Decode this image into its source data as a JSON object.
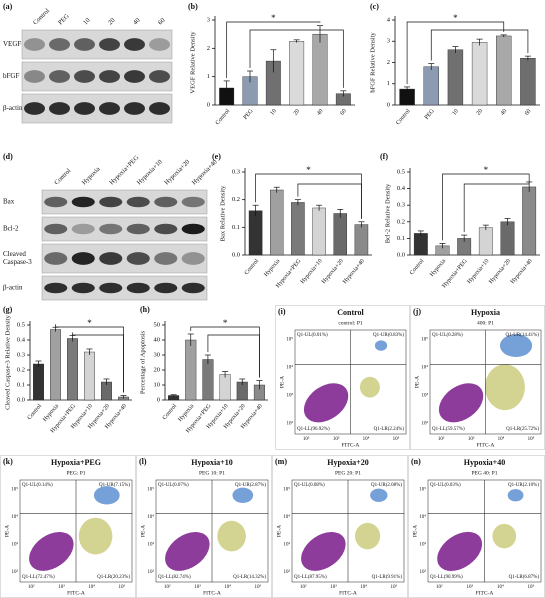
{
  "chart_data": [
    {
      "type": "bar",
      "panel": "(b)",
      "ylabel": "VEGF Relative Density",
      "categories": [
        "Control",
        "PEG",
        "10",
        "20",
        "40",
        "60"
      ],
      "values": [
        0.6,
        1.0,
        1.55,
        2.25,
        2.5,
        0.4
      ],
      "errors": [
        0.25,
        0.2,
        0.4,
        0.05,
        0.3,
        0.1
      ],
      "colors": [
        "#111111",
        "#8c9bb0",
        "#707070",
        "#dadada",
        "#a8a8a8",
        "#6e6e6e"
      ],
      "ylim": [
        0,
        3
      ],
      "yticks": [
        0,
        1,
        2,
        3
      ],
      "annotation": "*"
    },
    {
      "type": "bar",
      "panel": "(c)",
      "ylabel": "bFGF Relative Density",
      "categories": [
        "Control",
        "PEG",
        "10",
        "20",
        "40",
        "60"
      ],
      "values": [
        0.75,
        1.8,
        2.6,
        2.95,
        3.25,
        2.2
      ],
      "errors": [
        0.1,
        0.15,
        0.15,
        0.15,
        0.05,
        0.1
      ],
      "colors": [
        "#111111",
        "#8c9bb0",
        "#707070",
        "#dadada",
        "#a8a8a8",
        "#6e6e6e"
      ],
      "ylim": [
        0,
        4
      ],
      "yticks": [
        0,
        1,
        2,
        3,
        4
      ],
      "annotation": "*"
    },
    {
      "type": "bar",
      "panel": "(e)",
      "ylabel": "Bax Relative Density",
      "categories": [
        "Control",
        "Hypoxia",
        "Hypoxia+PEG",
        "Hypoxia+10",
        "Hypoxia+20",
        "Hypoxia+40"
      ],
      "values": [
        0.16,
        0.235,
        0.19,
        0.17,
        0.15,
        0.11
      ],
      "errors": [
        0.02,
        0.01,
        0.01,
        0.01,
        0.015,
        0.01
      ],
      "colors": [
        "#333333",
        "#a0a0a0",
        "#7a7a7a",
        "#d4d4d4",
        "#6a6a6a",
        "#8a8a8a"
      ],
      "ylim": [
        0,
        0.3
      ],
      "yticks": [
        {
          "value": 0,
          "label": "0.0"
        },
        0.1,
        0.2,
        0.3
      ],
      "annotation": "*"
    },
    {
      "type": "bar",
      "panel": "(f)",
      "ylabel": "Bcl-2 Relative Density",
      "categories": [
        "Control",
        "Hypoxia",
        "Hypoxia+PEG",
        "Hypoxia+10",
        "Hypoxia+20",
        "Hypoxia+40"
      ],
      "values": [
        0.13,
        0.055,
        0.1,
        0.165,
        0.2,
        0.41
      ],
      "errors": [
        0.015,
        0.015,
        0.02,
        0.015,
        0.02,
        0.03
      ],
      "colors": [
        "#333333",
        "#a0a0a0",
        "#7a7a7a",
        "#d4d4d4",
        "#6a6a6a",
        "#8a8a8a"
      ],
      "ylim": [
        0,
        0.5
      ],
      "yticks": [
        {
          "value": 0,
          "label": "0.0"
        },
        0.1,
        0.2,
        0.3,
        0.4,
        0.5
      ],
      "annotation": "*"
    },
    {
      "type": "bar",
      "panel": "(g)",
      "ylabel": "Cleaved Caspase-3 Relative Density",
      "categories": [
        "Control",
        "Hypoxia",
        "Hypoxia+PEG",
        "Hypoxia+10",
        "Hypoxia+20",
        "Hypoxia+40"
      ],
      "values": [
        0.24,
        0.47,
        0.41,
        0.32,
        0.12,
        0.02
      ],
      "errors": [
        0.02,
        0.015,
        0.02,
        0.02,
        0.02,
        0.01
      ],
      "colors": [
        "#333333",
        "#a0a0a0",
        "#7a7a7a",
        "#d4d4d4",
        "#6a6a6a",
        "#8a8a8a"
      ],
      "ylim": [
        0,
        0.5
      ],
      "yticks": [
        {
          "value": 0,
          "label": "0.0"
        },
        0.1,
        0.2,
        0.3,
        0.4,
        0.5
      ],
      "annotation": "*"
    },
    {
      "type": "bar",
      "panel": "(h)",
      "ylabel": "Percentage of Apoptosis",
      "categories": [
        "Control",
        "Hypoxia",
        "Hypoxia+PEG",
        "Hypoxia+10",
        "Hypoxia+20",
        "Hypoxia+40"
      ],
      "values": [
        3,
        40,
        27,
        17,
        12,
        10
      ],
      "errors": [
        0.5,
        4,
        3,
        2,
        2,
        3
      ],
      "colors": [
        "#333333",
        "#a0a0a0",
        "#7a7a7a",
        "#d4d4d4",
        "#6a6a6a",
        "#8a8a8a"
      ],
      "ylim": [
        0,
        50
      ],
      "yticks": [
        0,
        10,
        20,
        30,
        40,
        50
      ],
      "annotation": "*"
    }
  ],
  "blots": [
    {
      "panel": "(a)",
      "lanes": [
        "Control",
        "PEG",
        "10",
        "20",
        "40",
        "60"
      ],
      "rows": [
        [
          "VEGF"
        ],
        [
          "bFGF"
        ],
        [
          "β-actin"
        ]
      ]
    },
    {
      "panel": "(d)",
      "lanes": [
        "Control",
        "Hypoxia",
        "Hypoxia+PEG",
        "Hypoxia+10",
        "Hypoxia+20",
        "Hypoxia+40"
      ],
      "rows": [
        [
          "Bax"
        ],
        [
          "Bcl-2"
        ],
        [
          "Cleaved",
          "Caspase-3"
        ],
        [
          "β-actin"
        ]
      ]
    }
  ],
  "flow_axes": {
    "x": "FITC-A",
    "y": "PE-A",
    "ticks": [
      "10²",
      "10³",
      "10⁴",
      "10⁵"
    ]
  },
  "flow": [
    {
      "panel": "(i)",
      "title": "Control",
      "subtitle": "control: P1",
      "UL": "Q1-UL(0.01%)",
      "UR": "Q1-UR(0.83%)",
      "LL": "Q1-LL(96.92%)",
      "LR": "Q1-LR(2.24%)"
    },
    {
      "panel": "(j)",
      "title": "Hypoxia",
      "subtitle": "400: P1",
      "UL": "Q1-UL(0.28%)",
      "UR": "Q1-UR(14.41%)",
      "LL": "Q1-LL(59.57%)",
      "LR": "Q1-LR(25.72%)"
    },
    {
      "panel": "(k)",
      "title": "Hypoxia+PEG",
      "subtitle": "PEG: P1",
      "UL": "Q1-UL(0.14%)",
      "UR": "Q1-UR(7.15%)",
      "LL": "Q1-LL(72.47%)",
      "LR": "Q1-LR(20.23%)"
    },
    {
      "panel": "(l)",
      "title": "Hypoxia+10",
      "subtitle": "PEG 10: P1",
      "UL": "Q1-UL(0.07%)",
      "UR": "Q1-UR(2.87%)",
      "LL": "Q1-LL(82.74%)",
      "LR": "Q1-LR(14.32%)"
    },
    {
      "panel": "(m)",
      "title": "Hypoxia+20",
      "subtitle": "PEG 20: P1",
      "UL": "Q1-UL(0.08%)",
      "UR": "Q1-UR(2.08%)",
      "LL": "Q1-LL(87.95%)",
      "LR": "Q1-LR(9.91%)"
    },
    {
      "panel": "(n)",
      "title": "Hypoxia+40",
      "subtitle": "PEG 40: P1",
      "UL": "Q1-UL(0.03%)",
      "UR": "Q1-UR(2.10%)",
      "LL": "Q1-LL(90.99%)",
      "LR": "Q1-LR(6.87%)"
    }
  ]
}
